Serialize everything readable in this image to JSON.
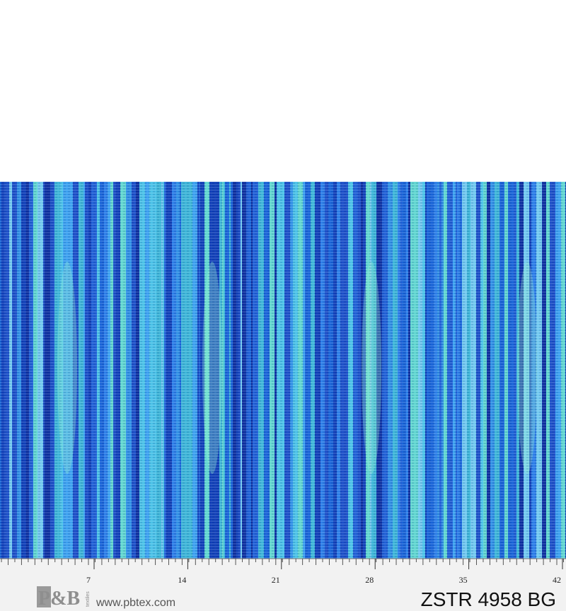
{
  "ruler": {
    "labels": [
      7,
      14,
      21,
      28,
      35,
      42
    ]
  },
  "logo": {
    "mark": "P&B",
    "sub": "textiles"
  },
  "website": "www.pbtex.com",
  "product_code": "ZSTR 4958 BG"
}
